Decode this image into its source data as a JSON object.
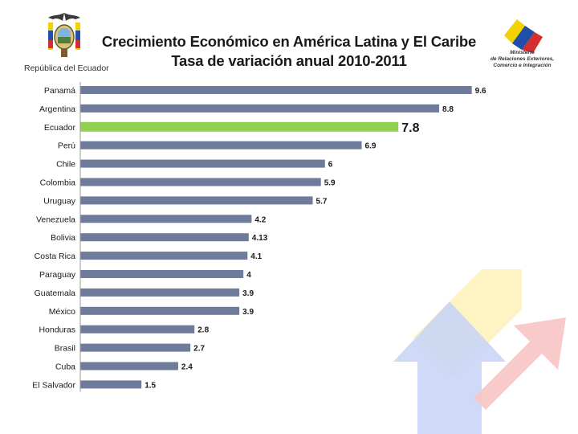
{
  "header": {
    "title_line1": "Crecimiento Económico en América Latina y El Caribe",
    "title_line2": "Tasa de variación anual 2010-2011",
    "republica": "República del Ecuador",
    "ministry_line1": "Ministerio",
    "ministry_line2": "de Relaciones Exteriores,",
    "ministry_line3": "Comercio e Integración"
  },
  "colors": {
    "bar": "#6e7b9b",
    "highlight": "#92d050",
    "arrow_yellow": "#fdf1b8",
    "arrow_blue": "#c9d6f6",
    "arrow_red": "#f8c4c4"
  },
  "chart_data": {
    "type": "bar",
    "orientation": "horizontal",
    "categories": [
      "Panamá",
      "Argentina",
      "Ecuador",
      "Perú",
      "Chile",
      "Colombia",
      "Uruguay",
      "Venezuela",
      "Bolivia",
      "Costa Rica",
      "Paraguay",
      "Guatemala",
      "México",
      "Honduras",
      "Brasil",
      "Cuba",
      "El Salvador"
    ],
    "values": [
      9.6,
      8.8,
      7.8,
      6.9,
      6,
      5.9,
      5.7,
      4.2,
      4.13,
      4.1,
      4,
      3.9,
      3.9,
      2.8,
      2.7,
      2.4,
      1.5
    ],
    "value_labels": [
      "9.6",
      "8.8",
      "7.8",
      "6.9",
      "6",
      "5.9",
      "5.7",
      "4.2",
      "4.13",
      "4.1",
      "4",
      "3.9",
      "3.9",
      "2.8",
      "2.7",
      "2.4",
      "1.5"
    ],
    "highlight": "Ecuador",
    "title": "Crecimiento Económico en América Latina y El Caribe",
    "subtitle": "Tasa de variación anual 2010-2011",
    "xlabel": "",
    "ylabel": "",
    "xlim": [
      0,
      10
    ],
    "grid": false,
    "legend": "none"
  }
}
